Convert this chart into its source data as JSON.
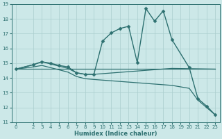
{
  "xlabel": "Humidex (Indice chaleur)",
  "ylabel": "",
  "xlim": [
    -0.5,
    23.5
  ],
  "ylim": [
    11,
    19
  ],
  "yticks": [
    11,
    12,
    13,
    14,
    15,
    16,
    17,
    18,
    19
  ],
  "xticks": [
    0,
    2,
    3,
    4,
    5,
    6,
    7,
    8,
    9,
    10,
    11,
    12,
    13,
    14,
    15,
    16,
    17,
    18,
    19,
    20,
    21,
    22,
    23
  ],
  "bg_color": "#cce8e8",
  "grid_color": "#aacece",
  "line_color": "#2d7070",
  "series": [
    {
      "x": [
        0,
        2,
        3,
        4,
        5,
        6,
        7,
        8,
        9,
        10,
        11,
        12,
        13,
        14,
        15,
        16,
        17,
        18,
        20,
        21,
        22,
        23
      ],
      "y": [
        14.6,
        14.9,
        15.1,
        15.0,
        14.85,
        14.75,
        14.35,
        14.25,
        14.25,
        16.5,
        17.05,
        17.35,
        17.5,
        15.05,
        18.7,
        17.85,
        18.55,
        16.6,
        14.7,
        12.6,
        12.1,
        11.5
      ],
      "marker": "D",
      "markersize": 2.5,
      "linewidth": 1.0
    },
    {
      "x": [
        0,
        2,
        3,
        4,
        5,
        6,
        7,
        8,
        9,
        18,
        23
      ],
      "y": [
        14.6,
        14.9,
        15.1,
        14.95,
        14.8,
        14.65,
        14.35,
        14.25,
        14.25,
        14.65,
        14.6
      ],
      "marker": null,
      "markersize": 0,
      "linewidth": 0.9
    },
    {
      "x": [
        0,
        18,
        23
      ],
      "y": [
        14.6,
        14.6,
        14.6
      ],
      "marker": null,
      "markersize": 0,
      "linewidth": 0.9
    },
    {
      "x": [
        0,
        2,
        3,
        4,
        5,
        6,
        7,
        8,
        9,
        18,
        20,
        21,
        22,
        23
      ],
      "y": [
        14.6,
        14.75,
        14.85,
        14.7,
        14.55,
        14.4,
        14.1,
        13.95,
        13.9,
        13.5,
        13.3,
        12.5,
        12.0,
        11.5
      ],
      "marker": null,
      "markersize": 0,
      "linewidth": 0.9
    }
  ]
}
